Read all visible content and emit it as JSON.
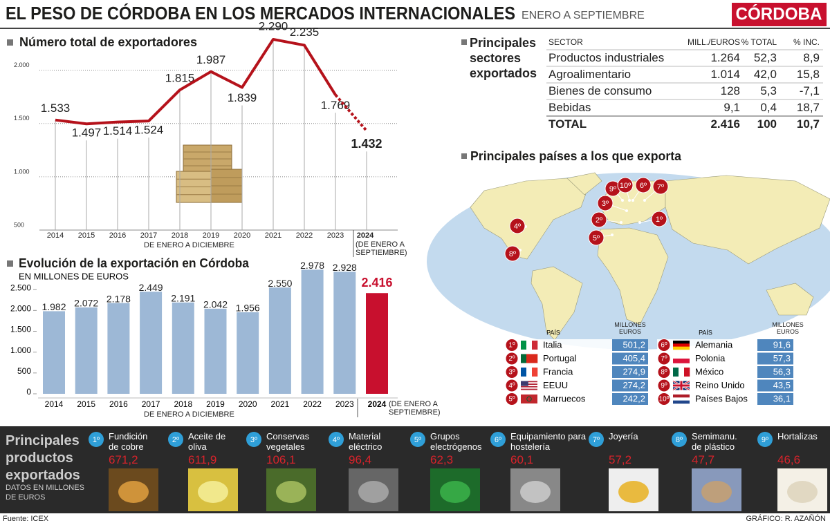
{
  "header": {
    "title": "EL PESO DE CÓRDOBA EN LOS MERCADOS INTERNACIONALES",
    "subtitle": "ENERO A SEPTIEMBRE",
    "brand": "CÓRDOBA"
  },
  "chart_data": [
    {
      "type": "line",
      "title": "Número total de exportadores",
      "categories": [
        "2014",
        "2015",
        "2016",
        "2017",
        "2018",
        "2019",
        "2020",
        "2021",
        "2022",
        "2023",
        "2024"
      ],
      "values": [
        1533,
        1497,
        1514,
        1524,
        1815,
        1987,
        1839,
        2290,
        2235,
        1769,
        1432
      ],
      "value_labels": [
        "1.533",
        "1.497",
        "1.514",
        "1.524",
        "1.815",
        "1.987",
        "1.839",
        "2.290",
        "2.235",
        "1.769",
        "1.432"
      ],
      "color": "#b5121b",
      "ylim": [
        500,
        2400
      ],
      "yticks": [
        500,
        {
          "value": 1000,
          "label": "1.000"
        },
        {
          "value": 1500,
          "label": "1.500"
        },
        {
          "value": 2000,
          "label": "2.000"
        }
      ],
      "grid": true,
      "x_note": "DE ENERO A DICIEMBRE",
      "last_note": "(DE ENERO A SEPTIEMBRE)"
    },
    {
      "type": "bar",
      "title": "Evolución de la exportación en Córdoba",
      "subtitle": "EN MILLONES DE EUROS",
      "categories": [
        "2014",
        "2015",
        "2016",
        "2017",
        "2018",
        "2019",
        "2020",
        "2021",
        "2022",
        "2023",
        "2024"
      ],
      "values": [
        1982,
        2072,
        2178,
        2449,
        2191,
        2042,
        1956,
        2550,
        2978,
        2928,
        2416
      ],
      "value_labels": [
        "1.982",
        "2.072",
        "2.178",
        "2.449",
        "2.191",
        "2.042",
        "1.956",
        "2.550",
        "2.978",
        "2.928",
        "2.416"
      ],
      "colors": [
        "#9db8d6",
        "#9db8d6",
        "#9db8d6",
        "#9db8d6",
        "#9db8d6",
        "#9db8d6",
        "#9db8d6",
        "#9db8d6",
        "#9db8d6",
        "#9db8d6",
        "#c8102e"
      ],
      "ylim": [
        0,
        3000
      ],
      "yticks": [
        0,
        500,
        {
          "value": 1000,
          "label": "1.000"
        },
        {
          "value": 1500,
          "label": "1.500"
        },
        {
          "value": 2000,
          "label": "2.000"
        },
        {
          "value": 2500,
          "label": "2.500"
        }
      ],
      "x_note": "DE ENERO A DICIEMBRE",
      "last_note": "(DE ENERO A SEPTIEMBRE)"
    }
  ],
  "table": {
    "title": "Principales sectores exportados",
    "header": [
      "SECTOR",
      "MILL./EUROS",
      "% TOTAL",
      "% INC."
    ],
    "rows": [
      [
        "Productos industriales",
        "1.264",
        "52,3",
        "8,9"
      ],
      [
        "Agroalimentario",
        "1.014",
        "42,0",
        "15,8"
      ],
      [
        "Bienes de consumo",
        "128",
        "5,3",
        "-7,1"
      ],
      [
        "Bebidas",
        "9,1",
        "0,4",
        "18,7"
      ],
      [
        "TOTAL",
        "2.416",
        "100",
        "10,7"
      ]
    ]
  },
  "countries": {
    "title": "Principales países a los que exporta",
    "header": [
      "PAÍS",
      "MILLONES EUROS"
    ],
    "rows": [
      {
        "rank": "1º",
        "name": "Italia",
        "value": "501,2"
      },
      {
        "rank": "2º",
        "name": "Portugal",
        "value": "405,4"
      },
      {
        "rank": "3º",
        "name": "Francia",
        "value": "274,9"
      },
      {
        "rank": "4º",
        "name": "EEUU",
        "value": "274,2"
      },
      {
        "rank": "5º",
        "name": "Marruecos",
        "value": "242,2"
      },
      {
        "rank": "6º",
        "name": "Alemania",
        "value": "91,6"
      },
      {
        "rank": "7º",
        "name": "Polonia",
        "value": "57,3"
      },
      {
        "rank": "8º",
        "name": "México",
        "value": "56,3"
      },
      {
        "rank": "9º",
        "name": "Reino Unido",
        "value": "43,5"
      },
      {
        "rank": "10º",
        "name": "Países Bajos",
        "value": "36,1"
      }
    ]
  },
  "products": {
    "title": "Principales productos exportados",
    "subtitle": "DATOS EN MILLONES DE EUROS",
    "items": [
      {
        "rank": "1º",
        "name": "Fundición de cobre",
        "value": "671,2"
      },
      {
        "rank": "2º",
        "name": "Aceite de oliva",
        "value": "611,9"
      },
      {
        "rank": "3º",
        "name": "Conservas vegetales",
        "value": "106,1"
      },
      {
        "rank": "4º",
        "name": "Material eléctrico",
        "value": "96,4"
      },
      {
        "rank": "5º",
        "name": "Grupos electrógenos",
        "value": "62,3"
      },
      {
        "rank": "6º",
        "name": "Equipamiento para hostelería",
        "value": "60,1"
      },
      {
        "rank": "7º",
        "name": "Joyería",
        "value": "57,2"
      },
      {
        "rank": "8º",
        "name": "Semimanu. de plástico",
        "value": "47,7"
      },
      {
        "rank": "9º",
        "name": "Hortalizas",
        "value": "46,6"
      }
    ]
  },
  "footer": {
    "source": "Fuente: ICEX",
    "credit": "GRÁFICO: R. AZAÑÓN"
  }
}
